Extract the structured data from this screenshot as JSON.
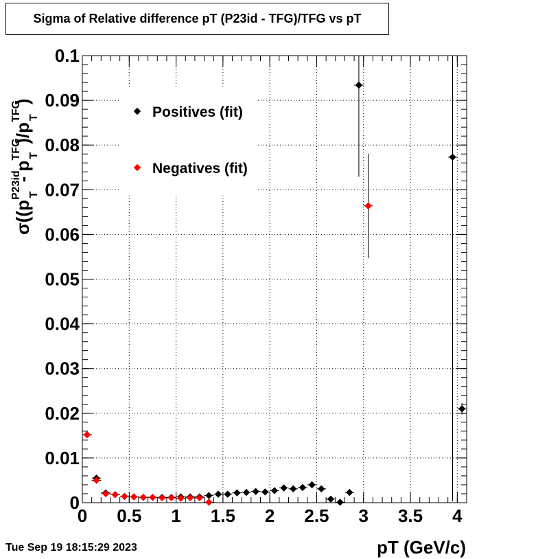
{
  "title": "Sigma of Relative difference pT (P23id - TFG)/TFG vs pT",
  "timestamp": "Tue Sep 19 18:15:29 2023",
  "colors": {
    "positives": "#000000",
    "negatives": "#ff0000",
    "grid": "#000000"
  },
  "chart_data": {
    "type": "scatter",
    "title": "Sigma of Relative difference pT (P23id - TFG)/TFG vs pT",
    "xlabel": "pT (GeV/c)",
    "ylabel": {
      "prefix": "σ((p",
      "sub1": "T",
      "sup1": "P23id",
      "mid": " - p",
      "sub2": "T",
      "sup2": "TFG",
      "mid2": ")/p",
      "sub3": "T",
      "sup3": "TFG",
      "suffix": ")"
    },
    "xlim": [
      0,
      4.1
    ],
    "ylim": [
      0,
      0.1
    ],
    "xticks": [
      0,
      0.5,
      1,
      1.5,
      2,
      2.5,
      3,
      3.5,
      4
    ],
    "xtick_labels": [
      "0",
      "0.5",
      "1",
      "1.5",
      "2",
      "2.5",
      "3",
      "3.5",
      "4"
    ],
    "yticks": [
      0,
      0.01,
      0.02,
      0.03,
      0.04,
      0.05,
      0.06,
      0.07,
      0.08,
      0.09,
      0.1
    ],
    "ytick_labels": [
      "0",
      "0.01",
      "0.02",
      "0.03",
      "0.04",
      "0.05",
      "0.06",
      "0.07",
      "0.08",
      "0.09",
      "0.1"
    ],
    "grid": true,
    "legend_position": "top-left",
    "series": [
      {
        "name": "Positives (fit)",
        "color": "#000000",
        "points": [
          {
            "x": 0.05,
            "y": 0.0152,
            "err": 0.0004
          },
          {
            "x": 0.15,
            "y": 0.0055,
            "err": 0.0003
          },
          {
            "x": 0.25,
            "y": 0.0022,
            "err": 0.0002
          },
          {
            "x": 0.35,
            "y": 0.0018,
            "err": 0.0002
          },
          {
            "x": 0.45,
            "y": 0.0014,
            "err": 0.0002
          },
          {
            "x": 0.55,
            "y": 0.0013,
            "err": 0.0002
          },
          {
            "x": 0.65,
            "y": 0.0012,
            "err": 0.0002
          },
          {
            "x": 0.75,
            "y": 0.0012,
            "err": 0.0002
          },
          {
            "x": 0.85,
            "y": 0.0012,
            "err": 0.0002
          },
          {
            "x": 0.95,
            "y": 0.0012,
            "err": 0.0002
          },
          {
            "x": 1.05,
            "y": 0.0013,
            "err": 0.0002
          },
          {
            "x": 1.15,
            "y": 0.0013,
            "err": 0.0002
          },
          {
            "x": 1.25,
            "y": 0.0013,
            "err": 0.0002
          },
          {
            "x": 1.35,
            "y": 0.0016,
            "err": 0.0002
          },
          {
            "x": 1.45,
            "y": 0.0019,
            "err": 0.0002
          },
          {
            "x": 1.55,
            "y": 0.0019,
            "err": 0.0002
          },
          {
            "x": 1.65,
            "y": 0.0022,
            "err": 0.0002
          },
          {
            "x": 1.75,
            "y": 0.0023,
            "err": 0.0002
          },
          {
            "x": 1.85,
            "y": 0.0025,
            "err": 0.0002
          },
          {
            "x": 1.95,
            "y": 0.0024,
            "err": 0.0002
          },
          {
            "x": 2.05,
            "y": 0.0027,
            "err": 0.0002
          },
          {
            "x": 2.15,
            "y": 0.0033,
            "err": 0.0002
          },
          {
            "x": 2.25,
            "y": 0.0031,
            "err": 0.0002
          },
          {
            "x": 2.35,
            "y": 0.0034,
            "err": 0.0002
          },
          {
            "x": 2.45,
            "y": 0.004,
            "err": 0.0003
          },
          {
            "x": 2.55,
            "y": 0.0031,
            "err": 0.0003
          },
          {
            "x": 2.65,
            "y": 0.0008,
            "err": 0.0004
          },
          {
            "x": 2.75,
            "y": 0.0001,
            "err": 0.0004
          },
          {
            "x": 2.85,
            "y": 0.0023,
            "err": 0.0004
          },
          {
            "x": 2.95,
            "y": 0.0934,
            "err": 0.0205
          },
          {
            "x": 3.95,
            "y": 0.0773,
            "err": 0.077
          },
          {
            "x": 4.05,
            "y": 0.021,
            "err": 0.0013
          }
        ]
      },
      {
        "name": "Negatives (fit)",
        "color": "#ff0000",
        "points": [
          {
            "x": 0.05,
            "y": 0.0152,
            "err": 0.0004
          },
          {
            "x": 0.15,
            "y": 0.005,
            "err": 0.0003
          },
          {
            "x": 0.25,
            "y": 0.002,
            "err": 0.0002
          },
          {
            "x": 0.35,
            "y": 0.0018,
            "err": 0.0002
          },
          {
            "x": 0.45,
            "y": 0.0014,
            "err": 0.0002
          },
          {
            "x": 0.55,
            "y": 0.0013,
            "err": 0.0002
          },
          {
            "x": 0.65,
            "y": 0.0012,
            "err": 0.0002
          },
          {
            "x": 0.75,
            "y": 0.0012,
            "err": 0.0002
          },
          {
            "x": 0.85,
            "y": 0.0011,
            "err": 0.0002
          },
          {
            "x": 0.95,
            "y": 0.0011,
            "err": 0.0002
          },
          {
            "x": 1.05,
            "y": 0.001,
            "err": 0.0002
          },
          {
            "x": 1.15,
            "y": 0.0011,
            "err": 0.0002
          },
          {
            "x": 1.25,
            "y": 0.0011,
            "err": 0.0002
          },
          {
            "x": 1.35,
            "y": 0.0001,
            "err": 0.0002
          },
          {
            "x": 3.05,
            "y": 0.0664,
            "err": 0.0117
          }
        ]
      }
    ]
  }
}
